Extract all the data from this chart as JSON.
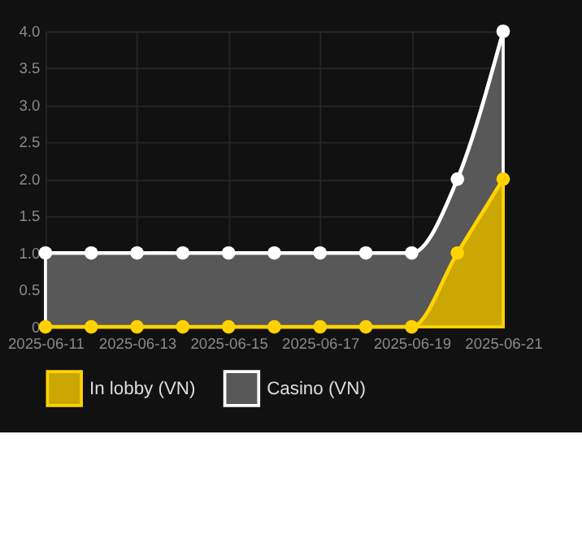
{
  "chart_data": {
    "type": "area",
    "x": [
      "2025-06-11",
      "2025-06-12",
      "2025-06-13",
      "2025-06-14",
      "2025-06-15",
      "2025-06-16",
      "2025-06-17",
      "2025-06-18",
      "2025-06-19",
      "2025-06-20",
      "2025-06-21"
    ],
    "series": [
      {
        "name": "In lobby (VN)",
        "color": "#ffd200",
        "values": [
          0,
          0,
          0,
          0,
          0,
          0,
          0,
          0,
          0,
          1,
          2
        ]
      },
      {
        "name": "Casino (VN)",
        "color": "#ffffff",
        "values": [
          1,
          1,
          1,
          1,
          1,
          1,
          1,
          1,
          1,
          2,
          4
        ]
      }
    ],
    "xlim": [
      "2025-06-11",
      "2025-06-21"
    ],
    "xticks": [
      "2025-06-11",
      "2025-06-13",
      "2025-06-15",
      "2025-06-17",
      "2025-06-19",
      "2025-06-21"
    ],
    "ylim": [
      0,
      4
    ],
    "yticks": [
      0,
      0.5,
      {
        "value": 1,
        "label": "1.0"
      },
      1.5,
      {
        "value": 2,
        "label": "2.0"
      },
      2.5,
      {
        "value": 3,
        "label": "3.0"
      },
      3.5,
      {
        "value": 4,
        "label": "4.0"
      }
    ],
    "grid": true,
    "legend": "bottom",
    "marker": "circle",
    "line_style": "solid"
  }
}
